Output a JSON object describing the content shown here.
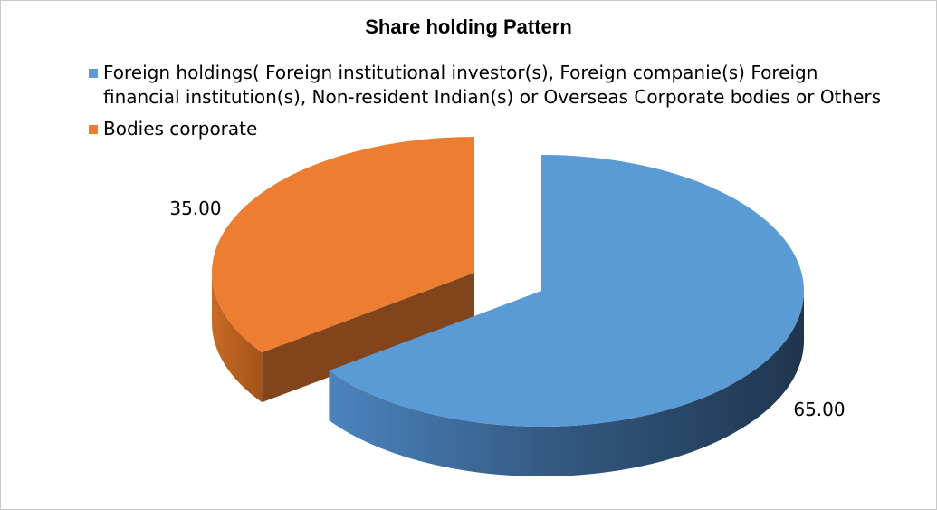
{
  "chart_data": {
    "type": "pie",
    "title": "Share holding Pattern",
    "legend_position": "top",
    "style": "3d-exploded",
    "slices": [
      {
        "name": "Foreign holdings( Foreign institutional investor(s), Foreign companie(s) Foreign financial institution(s), Non-resident Indian(s) or Overseas Corporate bodies or Others",
        "value": 65,
        "label": "65.00",
        "color": "#5B9BD5"
      },
      {
        "name": "Bodies corporate",
        "value": 35,
        "label": "35.00",
        "color": "#ED7D31"
      }
    ]
  }
}
